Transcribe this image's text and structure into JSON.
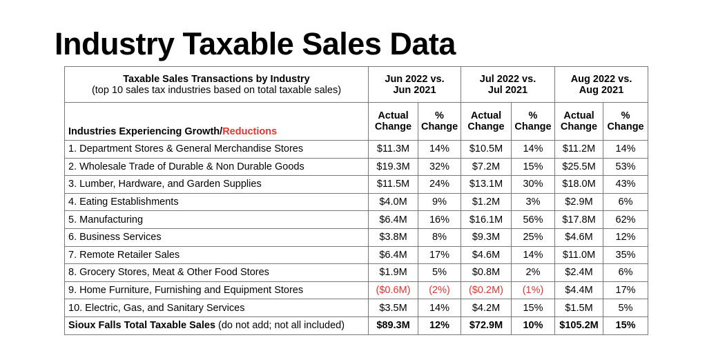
{
  "title": "Industry Taxable Sales Data",
  "header": {
    "main_title": "Taxable Sales Transactions by Industry",
    "main_subtitle": "(top 10 sales tax industries based on total taxable sales)",
    "periods": [
      {
        "line1": "Jun 2022 vs.",
        "line2": "Jun 2021"
      },
      {
        "line1": "Jul 2022 vs.",
        "line2": "Jul 2021"
      },
      {
        "line1": "Aug 2022 vs.",
        "line2": "Aug 2021"
      }
    ],
    "row_label_black": "Industries Experiencing Growth/",
    "row_label_red": "Reductions",
    "actual_line1": "Actual",
    "actual_line2": "Change",
    "pct_line1": "%",
    "pct_line2": "Change"
  },
  "colors": {
    "negative": "#e8322d"
  },
  "rows": [
    {
      "name": "1. Department Stores & General Merchandise Stores",
      "v": [
        "$11.3M",
        "14%",
        "$10.5M",
        "14%",
        "$11.2M",
        "14%"
      ],
      "neg": [
        false,
        false,
        false,
        false,
        false,
        false
      ]
    },
    {
      "name": "2. Wholesale Trade of Durable & Non Durable Goods",
      "v": [
        "$19.3M",
        "32%",
        "$7.2M",
        "15%",
        "$25.5M",
        "53%"
      ],
      "neg": [
        false,
        false,
        false,
        false,
        false,
        false
      ]
    },
    {
      "name": "3. Lumber, Hardware, and Garden Supplies",
      "v": [
        "$11.5M",
        "24%",
        "$13.1M",
        "30%",
        "$18.0M",
        "43%"
      ],
      "neg": [
        false,
        false,
        false,
        false,
        false,
        false
      ]
    },
    {
      "name": "4. Eating Establishments",
      "v": [
        "$4.0M",
        "9%",
        "$1.2M",
        "3%",
        "$2.9M",
        "6%"
      ],
      "neg": [
        false,
        false,
        false,
        false,
        false,
        false
      ]
    },
    {
      "name": "5. Manufacturing",
      "v": [
        "$6.4M",
        "16%",
        "$16.1M",
        "56%",
        "$17.8M",
        "62%"
      ],
      "neg": [
        false,
        false,
        false,
        false,
        false,
        false
      ]
    },
    {
      "name": "6. Business Services",
      "v": [
        "$3.8M",
        "8%",
        "$9.3M",
        "25%",
        "$4.6M",
        "12%"
      ],
      "neg": [
        false,
        false,
        false,
        false,
        false,
        false
      ]
    },
    {
      "name": "7. Remote Retailer Sales",
      "v": [
        "$6.4M",
        "17%",
        "$4.6M",
        "14%",
        "$11.0M",
        "35%"
      ],
      "neg": [
        false,
        false,
        false,
        false,
        false,
        false
      ]
    },
    {
      "name": "8. Grocery Stores, Meat & Other Food Stores",
      "v": [
        "$1.9M",
        "5%",
        "$0.8M",
        "2%",
        "$2.4M",
        "6%"
      ],
      "neg": [
        false,
        false,
        false,
        false,
        false,
        false
      ]
    },
    {
      "name": "9. Home Furniture, Furnishing and Equipment Stores",
      "v": [
        "($0.6M)",
        "(2%)",
        "($0.2M)",
        "(1%)",
        "$4.4M",
        "17%"
      ],
      "neg": [
        true,
        true,
        true,
        true,
        false,
        false
      ]
    },
    {
      "name": "10. Electric, Gas, and Sanitary Services",
      "v": [
        "$3.5M",
        "14%",
        "$4.2M",
        "15%",
        "$1.5M",
        "5%"
      ],
      "neg": [
        false,
        false,
        false,
        false,
        false,
        false
      ]
    }
  ],
  "total": {
    "name_bold": "Sioux Falls Total Taxable Sales",
    "name_note": " (do not add; not all included)",
    "v": [
      "$89.3M",
      "12%",
      "$72.9M",
      "10%",
      "$105.2M",
      "15%"
    ]
  }
}
